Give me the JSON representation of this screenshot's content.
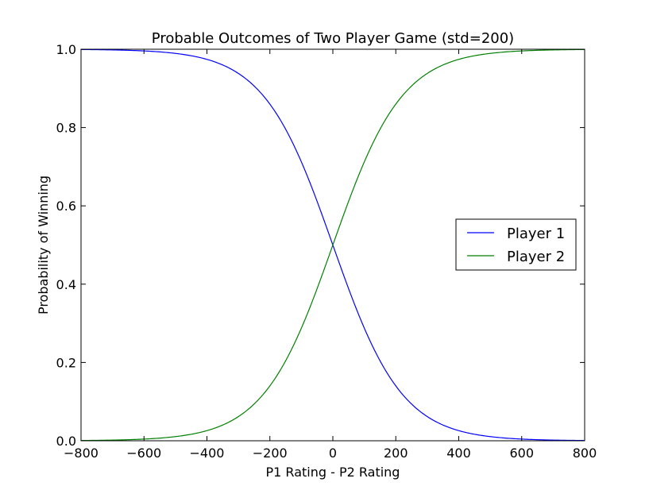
{
  "chart_data": {
    "type": "line",
    "title": "Probable Outcomes of Two Player Game (std=200)",
    "xlabel": "P1 Rating - P2 Rating",
    "ylabel": "Probability of Winning",
    "xlim": [
      -800,
      800
    ],
    "ylim": [
      0.0,
      1.0
    ],
    "xticks": [
      -800,
      -600,
      -400,
      -200,
      0,
      200,
      400,
      600,
      800
    ],
    "yticks": [
      0.0,
      0.2,
      0.4,
      0.6,
      0.8,
      1.0
    ],
    "xtick_labels": [
      "−800",
      "−600",
      "−400",
      "−200",
      "0",
      "200",
      "400",
      "600",
      "800"
    ],
    "ytick_labels": [
      "0.0",
      "0.2",
      "0.4",
      "0.6",
      "0.8",
      "1.0"
    ],
    "grid": false,
    "legend_position": "center-right",
    "x": [
      -800,
      -700,
      -600,
      -500,
      -400,
      -300,
      -200,
      -100,
      0,
      100,
      200,
      300,
      400,
      500,
      600,
      700,
      800
    ],
    "series": [
      {
        "name": "Player 1",
        "color": "#0000ff",
        "values": [
          0.998,
          0.996,
          0.99,
          0.976,
          0.945,
          0.88,
          0.76,
          0.64,
          0.5,
          0.36,
          0.24,
          0.12,
          0.055,
          0.024,
          0.01,
          0.004,
          0.002
        ]
      },
      {
        "name": "Player 2",
        "color": "#008000",
        "values": [
          0.002,
          0.004,
          0.01,
          0.024,
          0.055,
          0.12,
          0.24,
          0.36,
          0.5,
          0.64,
          0.76,
          0.88,
          0.945,
          0.976,
          0.99,
          0.996,
          0.998
        ]
      }
    ]
  }
}
